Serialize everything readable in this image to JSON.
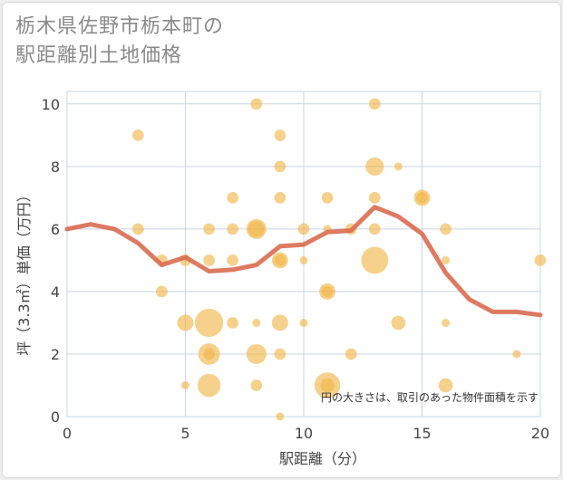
{
  "title_line1": "栃木県佐野市栃本町の",
  "title_line2": "駅距離別土地価格",
  "chart_data": {
    "type": "scatter",
    "xlabel": "駅距離（分）",
    "ylabel": "坪（3.3㎡）単価（万円）",
    "xlim": [
      0,
      20
    ],
    "ylim": [
      0,
      10.4
    ],
    "xticks": [
      0,
      5,
      10,
      15,
      20
    ],
    "yticks": [
      0,
      2,
      4,
      6,
      8,
      10
    ],
    "grid": true,
    "note": "円の大きさは、取引のあった物件面積を示す",
    "bubble_color": "#f0b545",
    "line_color": "#d96b50",
    "points": [
      {
        "x": 3,
        "y": 9,
        "s": 2
      },
      {
        "x": 3,
        "y": 6,
        "s": 2
      },
      {
        "x": 4,
        "y": 5,
        "s": 2
      },
      {
        "x": 4,
        "y": 4,
        "s": 2
      },
      {
        "x": 5,
        "y": 5,
        "s": 2
      },
      {
        "x": 5,
        "y": 3,
        "s": 4
      },
      {
        "x": 5,
        "y": 1,
        "s": 1
      },
      {
        "x": 6,
        "y": 6,
        "s": 2
      },
      {
        "x": 6,
        "y": 5,
        "s": 2
      },
      {
        "x": 6,
        "y": 3,
        "s": 12
      },
      {
        "x": 6,
        "y": 2,
        "s": 7
      },
      {
        "x": 6,
        "y": 2,
        "s": 2
      },
      {
        "x": 6,
        "y": 1,
        "s": 8
      },
      {
        "x": 7,
        "y": 7,
        "s": 2
      },
      {
        "x": 7,
        "y": 6,
        "s": 2
      },
      {
        "x": 7,
        "y": 5,
        "s": 2
      },
      {
        "x": 7,
        "y": 3,
        "s": 2
      },
      {
        "x": 8,
        "y": 10,
        "s": 2
      },
      {
        "x": 8,
        "y": 6,
        "s": 6
      },
      {
        "x": 8,
        "y": 6,
        "s": 4
      },
      {
        "x": 8,
        "y": 3,
        "s": 1
      },
      {
        "x": 8,
        "y": 2,
        "s": 6
      },
      {
        "x": 8,
        "y": 1,
        "s": 2
      },
      {
        "x": 9,
        "y": 9,
        "s": 2
      },
      {
        "x": 9,
        "y": 8,
        "s": 2
      },
      {
        "x": 9,
        "y": 7,
        "s": 2
      },
      {
        "x": 9,
        "y": 5,
        "s": 4
      },
      {
        "x": 9,
        "y": 5,
        "s": 2
      },
      {
        "x": 9,
        "y": 3,
        "s": 4
      },
      {
        "x": 9,
        "y": 2,
        "s": 2
      },
      {
        "x": 9,
        "y": 0,
        "s": 1
      },
      {
        "x": 10,
        "y": 6,
        "s": 2
      },
      {
        "x": 10,
        "y": 5,
        "s": 1
      },
      {
        "x": 10,
        "y": 3,
        "s": 1
      },
      {
        "x": 11,
        "y": 7,
        "s": 2
      },
      {
        "x": 11,
        "y": 6,
        "s": 1
      },
      {
        "x": 11,
        "y": 4,
        "s": 4
      },
      {
        "x": 11,
        "y": 4,
        "s": 2
      },
      {
        "x": 11,
        "y": 1,
        "s": 10
      },
      {
        "x": 11,
        "y": 1,
        "s": 3
      },
      {
        "x": 12,
        "y": 6,
        "s": 2
      },
      {
        "x": 12,
        "y": 2,
        "s": 2
      },
      {
        "x": 13,
        "y": 10,
        "s": 2
      },
      {
        "x": 13,
        "y": 8,
        "s": 5
      },
      {
        "x": 13,
        "y": 7,
        "s": 2
      },
      {
        "x": 13,
        "y": 6,
        "s": 2
      },
      {
        "x": 13,
        "y": 5,
        "s": 11
      },
      {
        "x": 14,
        "y": 8,
        "s": 1
      },
      {
        "x": 14,
        "y": 3,
        "s": 3
      },
      {
        "x": 15,
        "y": 7,
        "s": 4
      },
      {
        "x": 15,
        "y": 7,
        "s": 2
      },
      {
        "x": 16,
        "y": 6,
        "s": 2
      },
      {
        "x": 16,
        "y": 5,
        "s": 1
      },
      {
        "x": 16,
        "y": 3,
        "s": 1
      },
      {
        "x": 16,
        "y": 1,
        "s": 3
      },
      {
        "x": 19,
        "y": 2,
        "s": 1
      },
      {
        "x": 20,
        "y": 5,
        "s": 2
      }
    ],
    "trend": {
      "x": [
        0,
        1,
        2,
        3,
        4,
        5,
        6,
        7,
        8,
        9,
        10,
        11,
        12,
        13,
        14,
        15,
        16,
        17,
        18,
        19,
        20
      ],
      "y": [
        6.0,
        6.15,
        6.0,
        5.55,
        4.85,
        5.1,
        4.65,
        4.7,
        4.85,
        5.45,
        5.5,
        5.9,
        5.95,
        6.7,
        6.4,
        5.85,
        4.6,
        3.75,
        3.35,
        3.35,
        3.25
      ]
    }
  }
}
